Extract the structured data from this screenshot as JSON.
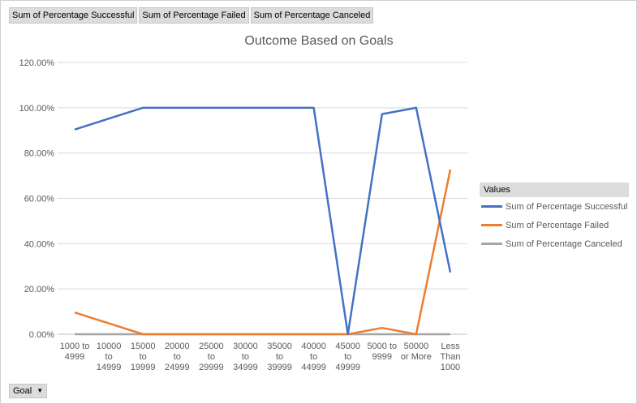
{
  "field_buttons": [
    "Sum of Percentage Successful",
    "Sum of Percentage Failed",
    "Sum of Percentage Canceled"
  ],
  "goal_button": {
    "label": "Goal"
  },
  "legend": {
    "header": "Values"
  },
  "chart_data": {
    "type": "line",
    "title": "Outcome Based on Goals",
    "categories": [
      [
        "1000 to",
        "4999"
      ],
      [
        "10000",
        "to",
        "14999"
      ],
      [
        "15000",
        "to",
        "19999"
      ],
      [
        "20000",
        "to",
        "24999"
      ],
      [
        "25000",
        "to",
        "29999"
      ],
      [
        "30000",
        "to",
        "34999"
      ],
      [
        "35000",
        "to",
        "39999"
      ],
      [
        "40000",
        "to",
        "44999"
      ],
      [
        "45000",
        "to",
        "49999"
      ],
      [
        "5000 to",
        "9999"
      ],
      [
        "50000",
        "or More"
      ],
      [
        "Less",
        "Than",
        "1000"
      ]
    ],
    "ylim": [
      0,
      120
    ],
    "yticks": [
      0,
      20,
      40,
      60,
      80,
      100,
      120
    ],
    "ytick_labels": [
      "0.00%",
      "20.00%",
      "40.00%",
      "60.00%",
      "80.00%",
      "100.00%",
      "120.00%"
    ],
    "grid": true,
    "legend_position": "right",
    "series": [
      {
        "name": "Sum of Percentage Successful",
        "color": "#4472c4",
        "values": [
          90.4,
          95.2,
          100,
          100,
          100,
          100,
          100,
          100,
          0,
          97.2,
          100,
          27.3
        ]
      },
      {
        "name": "Sum of Percentage Failed",
        "color": "#ed7d31",
        "values": [
          9.6,
          4.8,
          0,
          0,
          0,
          0,
          0,
          0,
          0,
          2.8,
          0,
          72.7
        ]
      },
      {
        "name": "Sum of Percentage Canceled",
        "color": "#a5a5a5",
        "values": [
          0,
          0,
          0,
          0,
          0,
          0,
          0,
          0,
          0,
          0,
          0,
          0
        ]
      }
    ]
  }
}
